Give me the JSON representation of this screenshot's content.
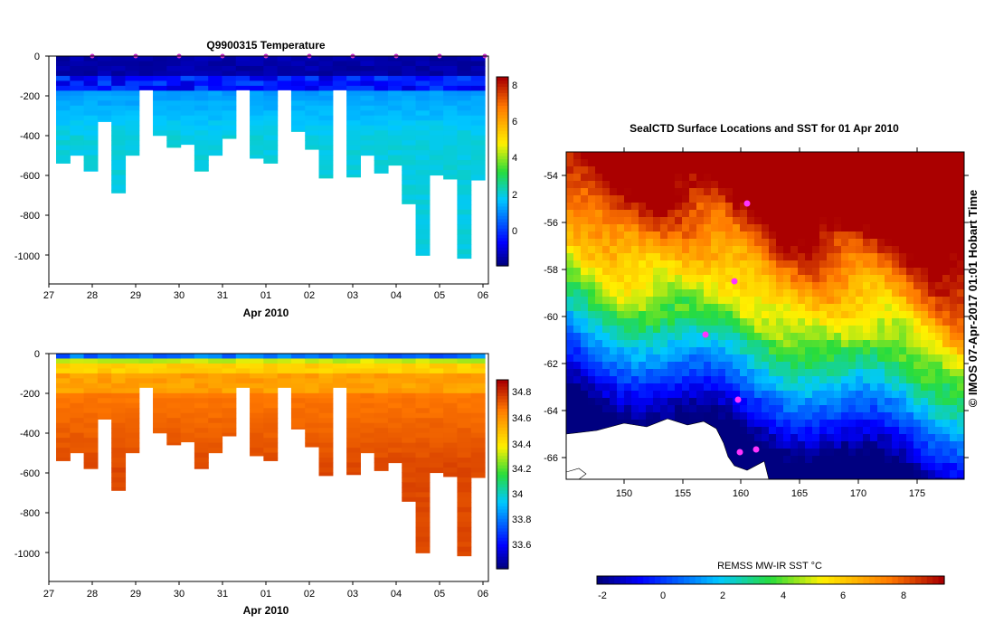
{
  "chart_data": [
    {
      "type": "heatmap",
      "title": "Q9900315  Temperature",
      "xlabel": "Apr 2010",
      "ylabel": "",
      "x_ticks": [
        "27",
        "28",
        "29",
        "30",
        "31",
        "01",
        "02",
        "03",
        "04",
        "05",
        "06"
      ],
      "y_ticks": [
        "0",
        "-200",
        "-400",
        "-600",
        "-800",
        "-1000"
      ],
      "ylim": [
        -1150,
        0
      ],
      "colorbar": {
        "min": -1.8,
        "max": 8.6,
        "ticks": [
          "0",
          "2",
          "4",
          "6",
          "8"
        ]
      },
      "profile_depths_m": [
        540,
        500,
        580,
        330,
        690,
        500,
        170,
        400,
        460,
        445,
        580,
        500,
        415,
        170,
        515,
        540,
        170,
        380,
        470,
        615,
        170,
        610,
        500,
        590,
        550,
        745,
        1005,
        600,
        620,
        1020,
        625
      ],
      "marker_color": "#cc33cc"
    },
    {
      "type": "heatmap",
      "title": "",
      "xlabel": "Apr 2010",
      "ylabel": "",
      "x_ticks": [
        "27",
        "28",
        "29",
        "30",
        "31",
        "01",
        "02",
        "03",
        "04",
        "05",
        "06"
      ],
      "y_ticks": [
        "0",
        "-200",
        "-400",
        "-600",
        "-800",
        "-1000"
      ],
      "ylim": [
        -1150,
        0
      ],
      "colorbar": {
        "min": 33.4,
        "max": 34.9,
        "ticks": [
          "34.8",
          "34.6",
          "34.4",
          "34.2",
          "34",
          "33.8",
          "33.6"
        ]
      },
      "profile_depths_m": [
        540,
        500,
        580,
        330,
        690,
        500,
        170,
        400,
        460,
        445,
        580,
        500,
        415,
        170,
        515,
        540,
        170,
        380,
        470,
        615,
        170,
        610,
        500,
        590,
        550,
        745,
        1005,
        600,
        620,
        1020,
        625
      ]
    },
    {
      "type": "heatmap",
      "title": "SealCTD Surface Locations and SST for 01 Apr 2010",
      "xlabel": "",
      "ylabel": "",
      "x_ticks": [
        "150",
        "155",
        "160",
        "165",
        "170",
        "175"
      ],
      "y_ticks": [
        "-54",
        "-56",
        "-58",
        "-60",
        "-62",
        "-64",
        "-66"
      ],
      "xlim": [
        145,
        179
      ],
      "ylim": [
        -67,
        -53
      ],
      "colorbar": {
        "label": "REMSS MW-IR SST °C",
        "min": -2.2,
        "max": 9.4,
        "ticks": [
          "-2",
          "0",
          "2",
          "4",
          "6",
          "8"
        ]
      }
    }
  ],
  "credit": "© IMOS 07-Apr-2017 01:01 Hobart Time"
}
